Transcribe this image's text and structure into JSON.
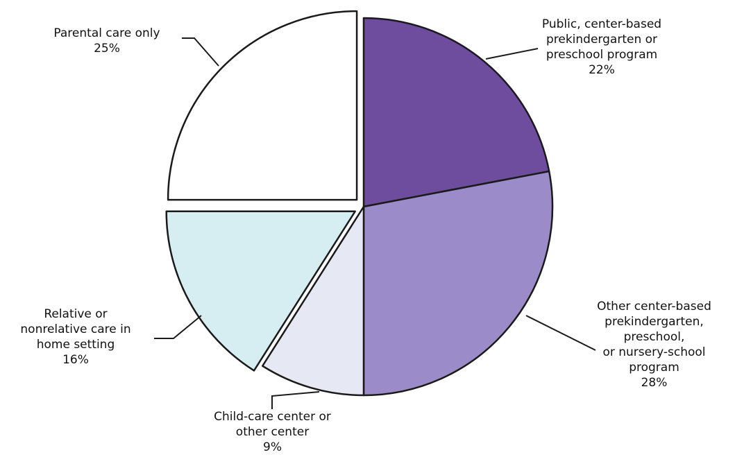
{
  "chart_data": {
    "type": "pie",
    "title": "",
    "unit": "%",
    "slices": [
      {
        "name": "Public, center-based prekindergarten or preschool program",
        "label_lines": [
          "Public, center-based",
          "prekindergarten or",
          "preschool program"
        ],
        "value": 22,
        "value_label": "22%",
        "color": "#6e4c9e",
        "exploded": false
      },
      {
        "name": "Other center-based prekindergarten, preschool, or nursery-school program",
        "label_lines": [
          "Other center-based",
          "prekindergarten,",
          "preschool,",
          "or nursery-school",
          "program"
        ],
        "value": 28,
        "value_label": "28%",
        "color": "#9b8bc8",
        "exploded": false
      },
      {
        "name": "Child-care center or other center",
        "label_lines": [
          "Child-care center or",
          "other center"
        ],
        "value": 9,
        "value_label": "9%",
        "color": "#e6e8f4",
        "exploded": false
      },
      {
        "name": "Relative or nonrelative care in home setting",
        "label_lines": [
          "Relative or",
          "nonrelative care in",
          "home setting"
        ],
        "value": 16,
        "value_label": "16%",
        "color": "#d6edf2",
        "exploded": true
      },
      {
        "name": "Parental care only",
        "label_lines": [
          "Parental care only"
        ],
        "value": 25,
        "value_label": "25%",
        "color": "#ffffff",
        "exploded": true
      }
    ],
    "start_angle_deg": 0,
    "direction": "clockwise",
    "legend": "none"
  }
}
